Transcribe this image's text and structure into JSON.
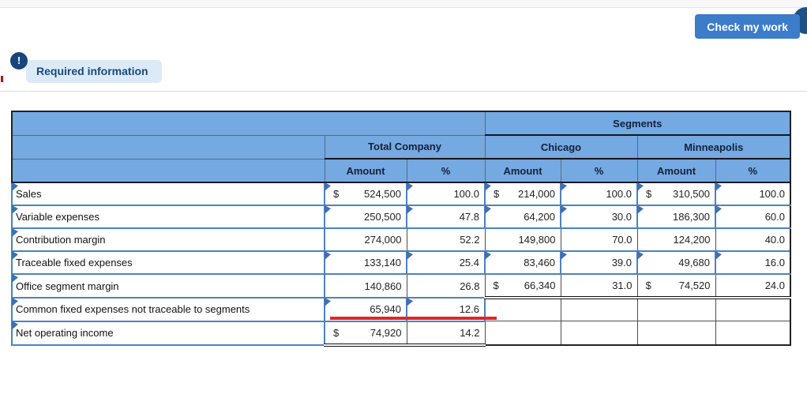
{
  "toolbar": {
    "check_my_work_label": "Check my work"
  },
  "notice": {
    "alert_glyph": "!",
    "required_info_label": "Required information"
  },
  "colors": {
    "header_blue": "#74a9e2",
    "input_border_blue": "#4f81bd",
    "button_blue": "#3c7cc8",
    "navy": "#17457c",
    "error_red": "#e3242b"
  },
  "table": {
    "segments_header": "Segments",
    "group_headers": [
      "Total Company",
      "Chicago",
      "Minneapolis"
    ],
    "sub_headers": [
      "Amount",
      "%"
    ],
    "rows": [
      {
        "label": "Sales",
        "cells": [
          {
            "v": "524,500",
            "d": "$",
            "in": true
          },
          {
            "v": "100.0",
            "in": true
          },
          {
            "v": "214,000",
            "d": "$",
            "in": true
          },
          {
            "v": "100.0",
            "in": true
          },
          {
            "v": "310,500",
            "d": "$",
            "in": true
          },
          {
            "v": "100.0",
            "in": true
          }
        ]
      },
      {
        "label": "Variable expenses",
        "cells": [
          {
            "v": "250,500",
            "in": true
          },
          {
            "v": "47.8",
            "in": true
          },
          {
            "v": "64,200",
            "in": true
          },
          {
            "v": "30.0",
            "in": true
          },
          {
            "v": "186,300",
            "in": true
          },
          {
            "v": "60.0",
            "in": true
          }
        ]
      },
      {
        "label": "Contribution margin",
        "cells": [
          {
            "v": "274,000"
          },
          {
            "v": "52.2"
          },
          {
            "v": "149,800"
          },
          {
            "v": "70.0"
          },
          {
            "v": "124,200"
          },
          {
            "v": "40.0"
          }
        ]
      },
      {
        "label": "Traceable fixed expenses",
        "cells": [
          {
            "v": "133,140",
            "in": true
          },
          {
            "v": "25.4",
            "in": true
          },
          {
            "v": "83,460",
            "in": true
          },
          {
            "v": "39.0",
            "in": true
          },
          {
            "v": "49,680",
            "in": true
          },
          {
            "v": "16.0",
            "in": true
          }
        ]
      },
      {
        "label": "Office segment margin",
        "cells": [
          {
            "v": "140,860"
          },
          {
            "v": "26.8"
          },
          {
            "v": "66,340",
            "d": "$",
            "dbl": true
          },
          {
            "v": "31.0",
            "dbl": true
          },
          {
            "v": "74,520",
            "d": "$",
            "dbl": true
          },
          {
            "v": "24.0",
            "dbl": true
          }
        ]
      },
      {
        "label": "Common fixed expenses not traceable to segments",
        "cells": [
          {
            "v": "65,940",
            "in": true,
            "red": true
          },
          {
            "v": "12.6",
            "in": true,
            "red": true
          },
          {},
          {},
          {},
          {}
        ]
      },
      {
        "label": "Net operating income",
        "cells": [
          {
            "v": "74,920",
            "d": "$",
            "dbl": true
          },
          {
            "v": "14.2",
            "dbl": true
          },
          {},
          {},
          {},
          {}
        ]
      }
    ]
  }
}
